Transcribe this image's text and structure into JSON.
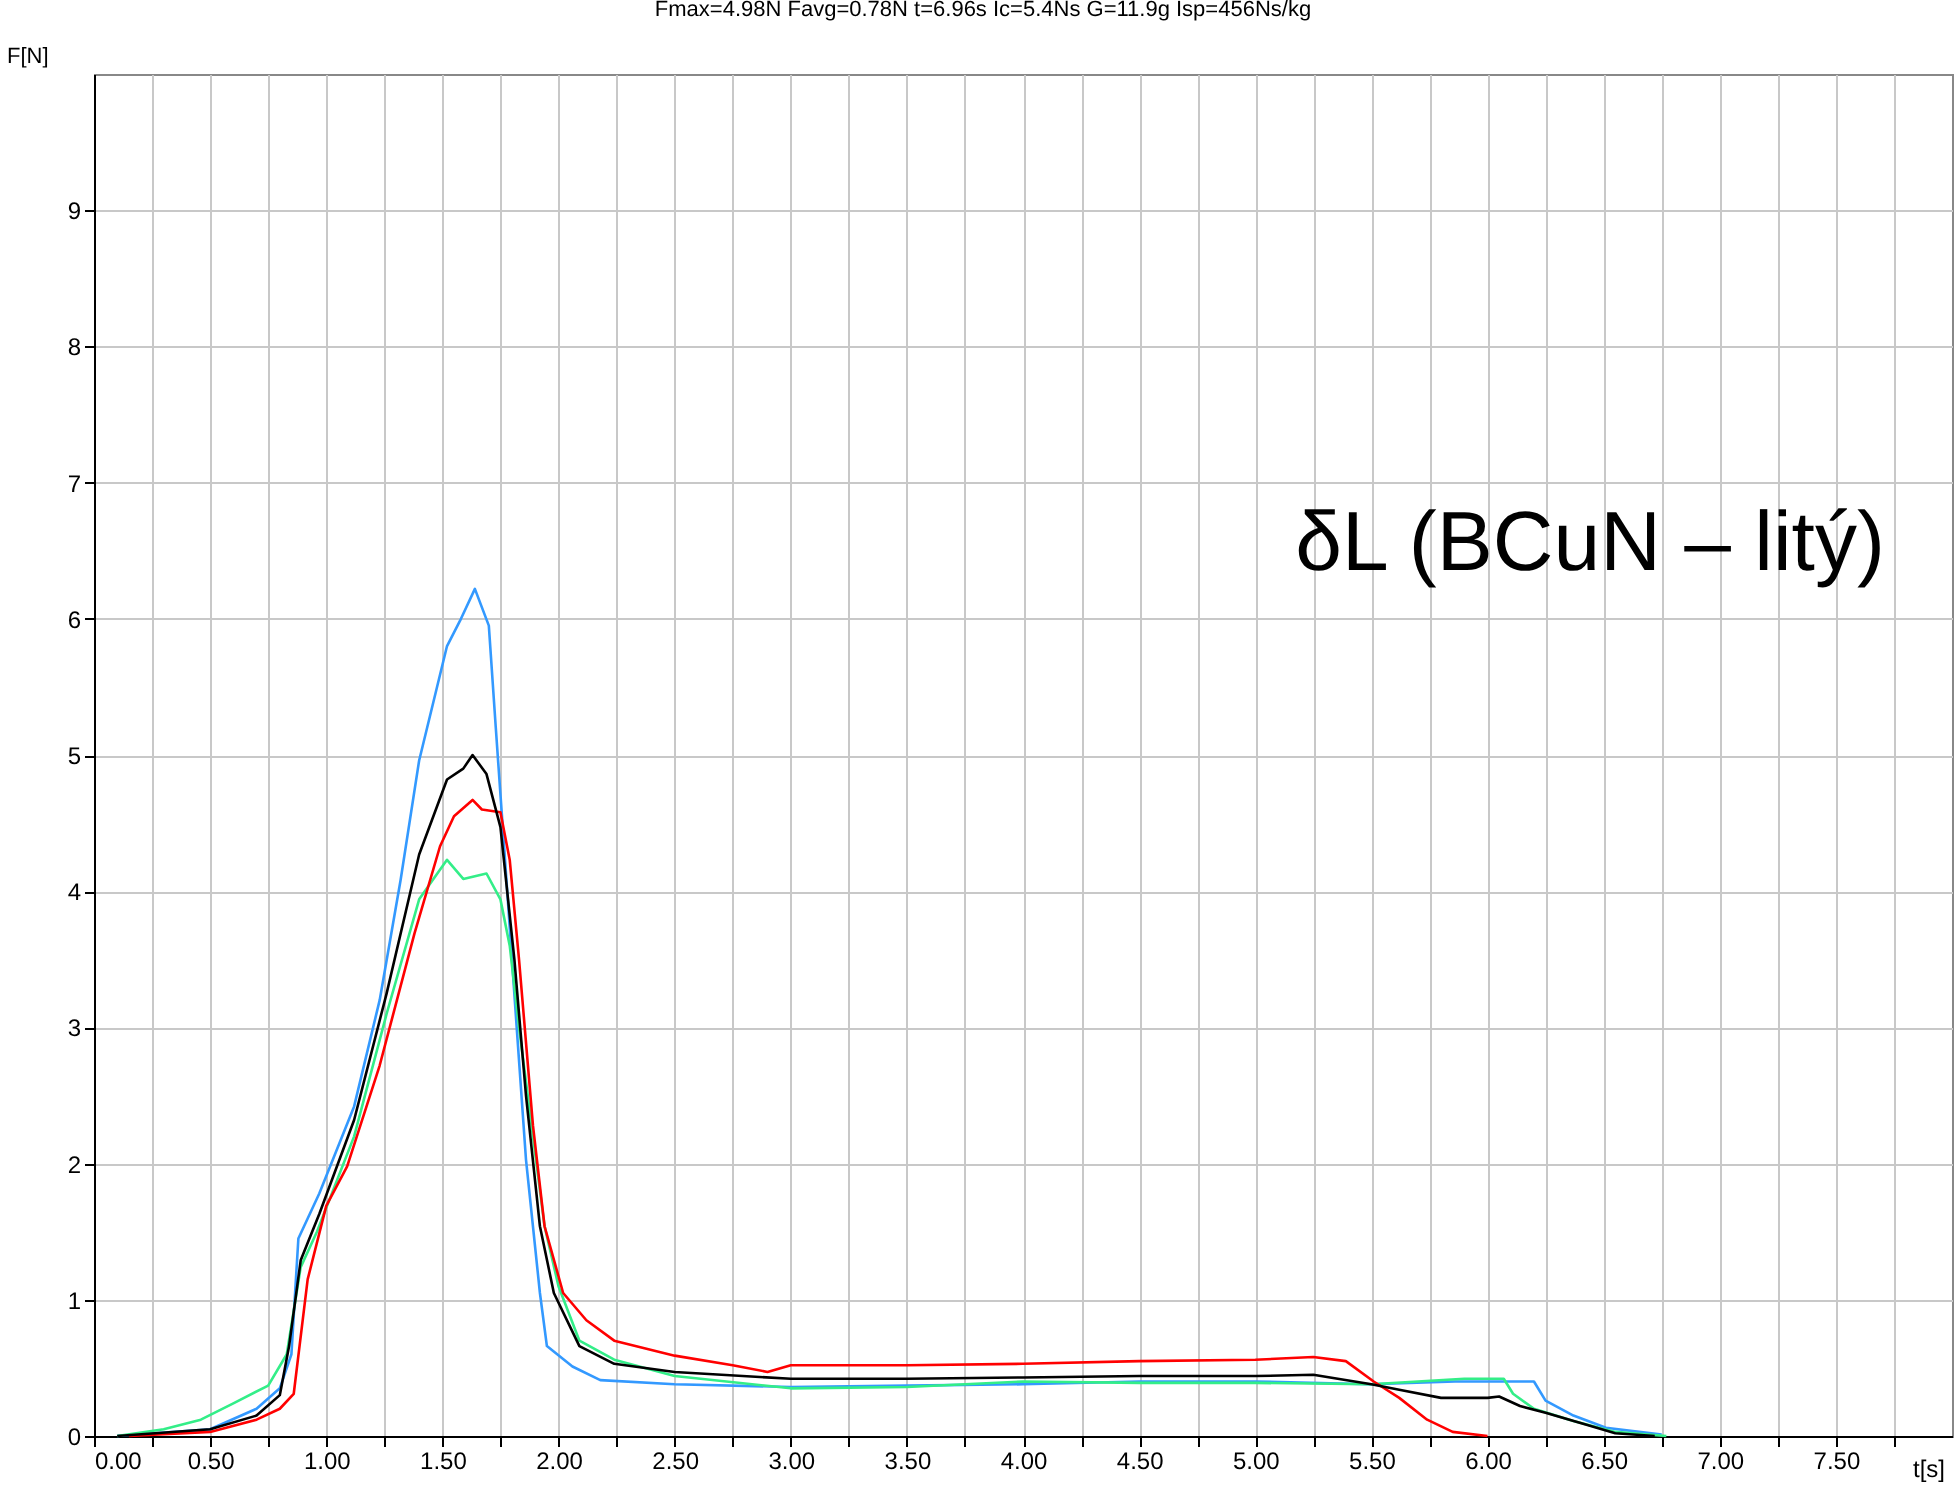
{
  "chart_data": {
    "type": "line",
    "title": "Fmax=4.98N  Favg=0.78N  t=6.96s  Ic=5.4Ns  G=11.9g  Isp=456Ns/kg",
    "xlabel": "t[s]",
    "ylabel": "F[N]",
    "annotations": [
      "δL (BCuN – litý)"
    ],
    "xlim": [
      0,
      8
    ],
    "ylim": [
      0,
      10
    ],
    "xticks": [
      {
        "value": 0,
        "label": "0.00"
      },
      {
        "value": 0.25,
        "label": null
      },
      {
        "value": 0.5,
        "label": "0.50"
      },
      {
        "value": 0.75,
        "label": null
      },
      {
        "value": 1,
        "label": "1.00"
      },
      {
        "value": 1.25,
        "label": null
      },
      {
        "value": 1.5,
        "label": "1.50"
      },
      {
        "value": 1.75,
        "label": null
      },
      {
        "value": 2,
        "label": "2.00"
      },
      {
        "value": 2.25,
        "label": null
      },
      {
        "value": 2.5,
        "label": "2.50"
      },
      {
        "value": 2.75,
        "label": null
      },
      {
        "value": 3,
        "label": "3.00"
      },
      {
        "value": 3.25,
        "label": null
      },
      {
        "value": 3.5,
        "label": "3.50"
      },
      {
        "value": 3.75,
        "label": null
      },
      {
        "value": 4,
        "label": "4.00"
      },
      {
        "value": 4.25,
        "label": null
      },
      {
        "value": 4.5,
        "label": "4.50"
      },
      {
        "value": 4.75,
        "label": null
      },
      {
        "value": 5,
        "label": "5.00"
      },
      {
        "value": 5.25,
        "label": null
      },
      {
        "value": 5.5,
        "label": "5.50"
      },
      {
        "value": 5.75,
        "label": null
      },
      {
        "value": 6,
        "label": "6.00"
      },
      {
        "value": 6.25,
        "label": null
      },
      {
        "value": 6.5,
        "label": "6.50"
      },
      {
        "value": 6.75,
        "label": null
      },
      {
        "value": 7,
        "label": "7.00"
      },
      {
        "value": 7.25,
        "label": null
      },
      {
        "value": 7.5,
        "label": "7.50"
      },
      {
        "value": 7.75,
        "label": null
      }
    ],
    "yticks": [
      0,
      1,
      2,
      3,
      4,
      5,
      6,
      7,
      8,
      9
    ],
    "grid": true,
    "legend": false,
    "marker": "none",
    "line_style": "solid",
    "series": [
      {
        "color": "#3399ff",
        "x": [
          0.1,
          0.5,
          0.7,
          0.8,
          0.85,
          0.88,
          0.97,
          1.12,
          1.23,
          1.32,
          1.4,
          1.52,
          1.58,
          1.64,
          1.7,
          1.73,
          1.78,
          1.82,
          1.86,
          1.92,
          1.95,
          2.06,
          2.18,
          2.5,
          3.0,
          3.5,
          4.0,
          4.5,
          5.0,
          5.5,
          5.86,
          6.2,
          6.25,
          6.37,
          6.51,
          6.75
        ],
        "values": [
          0,
          0.05,
          0.2,
          0.35,
          0.6,
          1.45,
          1.78,
          2.42,
          3.2,
          4.08,
          4.96,
          5.8,
          6.0,
          6.22,
          5.95,
          5.2,
          3.98,
          3.0,
          2.03,
          1.05,
          0.66,
          0.51,
          0.41,
          0.38,
          0.36,
          0.37,
          0.38,
          0.4,
          0.4,
          0.38,
          0.4,
          0.4,
          0.26,
          0.15,
          0.06,
          0.01
        ]
      },
      {
        "color": "#33ee88",
        "x": [
          0.1,
          0.3,
          0.46,
          0.6,
          0.75,
          0.83,
          0.89,
          0.96,
          1.12,
          1.26,
          1.4,
          1.52,
          1.59,
          1.69,
          1.75,
          1.79,
          1.83,
          1.89,
          1.94,
          2.0,
          2.09,
          2.24,
          2.5,
          3.0,
          3.5,
          4.0,
          4.5,
          5.0,
          5.5,
          5.9,
          6.07,
          6.11,
          6.2,
          6.37,
          6.55,
          6.77
        ],
        "values": [
          0,
          0.05,
          0.12,
          0.24,
          0.37,
          0.6,
          1.24,
          1.5,
          2.2,
          3.1,
          3.94,
          4.23,
          4.09,
          4.13,
          3.94,
          3.6,
          3.0,
          2.2,
          1.54,
          1.1,
          0.7,
          0.56,
          0.44,
          0.35,
          0.36,
          0.4,
          0.39,
          0.39,
          0.38,
          0.42,
          0.42,
          0.31,
          0.2,
          0.11,
          0.03,
          0
        ]
      },
      {
        "color": "#ff0000",
        "x": [
          0.15,
          0.5,
          0.7,
          0.8,
          0.86,
          0.92,
          1.0,
          1.09,
          1.23,
          1.38,
          1.49,
          1.55,
          1.63,
          1.67,
          1.75,
          1.79,
          1.83,
          1.89,
          1.94,
          2.02,
          2.12,
          2.24,
          2.5,
          2.75,
          2.9,
          3.0,
          3.5,
          4.0,
          4.5,
          5.0,
          5.25,
          5.39,
          5.51,
          5.62,
          5.74,
          5.85,
          6.0
        ],
        "values": [
          0,
          0.03,
          0.12,
          0.2,
          0.31,
          1.15,
          1.69,
          1.98,
          2.72,
          3.69,
          4.33,
          4.55,
          4.67,
          4.6,
          4.58,
          4.23,
          3.5,
          2.28,
          1.54,
          1.05,
          0.85,
          0.7,
          0.59,
          0.52,
          0.47,
          0.52,
          0.52,
          0.53,
          0.55,
          0.56,
          0.58,
          0.55,
          0.4,
          0.28,
          0.12,
          0.03,
          0
        ]
      },
      {
        "color": "#000000",
        "x": [
          0.1,
          0.5,
          0.7,
          0.8,
          0.84,
          0.89,
          0.97,
          1.12,
          1.26,
          1.4,
          1.52,
          1.59,
          1.63,
          1.69,
          1.75,
          1.81,
          1.86,
          1.92,
          1.98,
          2.09,
          2.24,
          2.5,
          3.0,
          3.5,
          4.0,
          4.5,
          5.0,
          5.25,
          5.5,
          5.62,
          5.8,
          6.0,
          6.05,
          6.14,
          6.25,
          6.43,
          6.55,
          6.72
        ],
        "values": [
          0,
          0.05,
          0.15,
          0.3,
          0.66,
          1.29,
          1.63,
          2.32,
          3.25,
          4.27,
          4.82,
          4.9,
          5.0,
          4.86,
          4.47,
          3.5,
          2.5,
          1.54,
          1.05,
          0.66,
          0.53,
          0.47,
          0.42,
          0.42,
          0.43,
          0.44,
          0.44,
          0.45,
          0.38,
          0.34,
          0.28,
          0.28,
          0.29,
          0.22,
          0.17,
          0.08,
          0.02,
          0
        ]
      }
    ]
  }
}
